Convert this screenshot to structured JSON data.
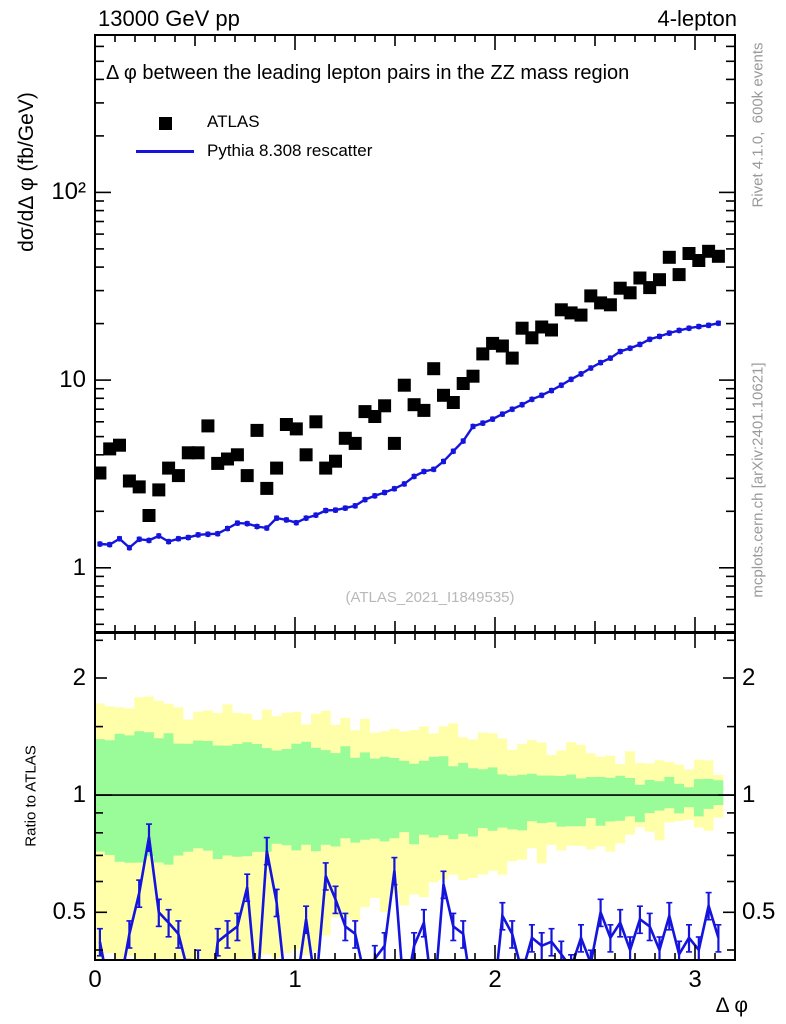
{
  "header": {
    "left": "13000 GeV pp",
    "right": "4-lepton"
  },
  "side_notes": {
    "top_rotated": "Rivet 4.1.0,  600k events",
    "bottom_rotated": "mcplots.cern.ch [arXiv:2401.10621]"
  },
  "watermark": "(ATLAS_2021_I1849535)",
  "legend": {
    "items": [
      {
        "label": "ATLAS",
        "marker": "black-filled-square"
      },
      {
        "label": "Pythia 8.308 rescatter",
        "marker": "blue-line"
      }
    ]
  },
  "colors": {
    "blue": "#1414dd",
    "black": "#000000",
    "band_yellow": "#FFFFAA",
    "band_green": "#99FC99",
    "gray_text": "#9a9a9a",
    "watermark_gray": "#b8b8b8"
  },
  "chart_data": {
    "type": "line",
    "title": "Δ φ between the leading lepton pairs in the ZZ mass region",
    "x": {
      "label": "Δ φ",
      "range": [
        0,
        3.2
      ],
      "tick_values": [
        0,
        1,
        2,
        3
      ],
      "tick_labels": [
        "0",
        "1",
        "2",
        "3"
      ]
    },
    "bins": {
      "n": 64,
      "start": 0,
      "end": 3.14159
    },
    "main_axis": {
      "label": "dσ/dΔ φ (fb/GeV)",
      "scale": "log",
      "range": [
        0.455,
        690
      ],
      "tick_values": [
        100,
        10,
        1
      ],
      "tick_labels": [
        "10²",
        "10",
        "1"
      ],
      "minor_ticks": [
        0.5,
        0.6,
        0.7,
        0.8,
        0.9,
        2,
        3,
        4,
        5,
        6,
        7,
        8,
        9,
        20,
        30,
        40,
        50,
        60,
        70,
        80,
        90,
        200,
        300,
        400,
        500,
        600
      ]
    },
    "ratio_axis": {
      "label": "Ratio to ATLAS",
      "scale": "log",
      "range": [
        0.377,
        2.61
      ],
      "tick_values": [
        2,
        1,
        0.5
      ],
      "tick_labels": [
        "2",
        "1",
        "0.5"
      ],
      "minor_ticks": [
        0.4,
        0.6,
        0.7,
        0.8,
        0.9,
        1.5,
        2.5
      ]
    },
    "series": [
      {
        "name": "ATLAS",
        "type": "scatter",
        "marker": "filled-square",
        "color": "#000000",
        "values": [
          3.2,
          4.3,
          4.5,
          2.9,
          2.7,
          1.9,
          2.6,
          3.4,
          3.1,
          4.1,
          4.1,
          5.7,
          3.6,
          3.8,
          4.0,
          3.1,
          5.4,
          2.65,
          3.4,
          5.8,
          5.5,
          4.0,
          6.0,
          3.4,
          3.7,
          4.9,
          4.6,
          6.8,
          6.4,
          7.3,
          4.6,
          9.4,
          7.4,
          6.9,
          11.5,
          8.3,
          7.6,
          9.6,
          10.5,
          13.8,
          15.7,
          15.2,
          13.1,
          18.9,
          16.8,
          19.2,
          18.5,
          23.7,
          22.8,
          22.2,
          28.1,
          25.8,
          25.2,
          30.9,
          29.2,
          35.0,
          31.1,
          34.3,
          45.1,
          36.5,
          47.3,
          43.4,
          48.6,
          45.7
        ]
      },
      {
        "name": "Pythia 8.308 rescatter",
        "type": "line",
        "marker": "small-square",
        "color": "#1414dd",
        "err_rel": 0.035,
        "values": [
          1.34,
          1.33,
          1.43,
          1.28,
          1.42,
          1.4,
          1.48,
          1.38,
          1.43,
          1.45,
          1.5,
          1.51,
          1.52,
          1.62,
          1.73,
          1.72,
          1.66,
          1.63,
          1.84,
          1.8,
          1.74,
          1.84,
          1.91,
          2.02,
          2.03,
          2.08,
          2.14,
          2.31,
          2.42,
          2.52,
          2.64,
          2.8,
          3.07,
          3.26,
          3.35,
          3.69,
          4.18,
          4.74,
          5.67,
          5.9,
          6.2,
          6.59,
          7.0,
          7.4,
          7.9,
          8.3,
          8.8,
          9.4,
          10.1,
          10.8,
          11.6,
          12.4,
          13.1,
          14.2,
          14.8,
          15.5,
          16.5,
          17.1,
          17.8,
          18.4,
          18.9,
          19.3,
          19.6,
          20.1
        ]
      }
    ],
    "ratio": {
      "name": "Pythia 8.308 rescatter / ATLAS",
      "color": "#1414dd",
      "err_rel": 0.08,
      "values": [
        0.42,
        0.31,
        0.32,
        0.44,
        0.56,
        0.78,
        0.5,
        0.47,
        0.44,
        0.35,
        0.37,
        0.26,
        0.42,
        0.44,
        0.46,
        0.58,
        0.31,
        0.72,
        0.53,
        0.31,
        0.32,
        0.48,
        0.32,
        0.62,
        0.54,
        0.46,
        0.44,
        0.34,
        0.38,
        0.41,
        0.64,
        0.3,
        0.41,
        0.47,
        0.29,
        0.59,
        0.46,
        0.44,
        0.3,
        0.34,
        0.28,
        0.49,
        0.44,
        0.35,
        0.43,
        0.41,
        0.42,
        0.39,
        0.36,
        0.43,
        0.37,
        0.5,
        0.43,
        0.47,
        0.4,
        0.48,
        0.46,
        0.4,
        0.49,
        0.39,
        0.43,
        0.4,
        0.52,
        0.43
      ]
    },
    "uncertainty_bands": {
      "description": "ATLAS data uncertainty around ratio=1; yellow=total, green=statistical",
      "anchors_x": [
        0.1,
        0.3,
        0.5,
        0.7,
        0.9,
        1.1,
        1.3,
        1.5,
        1.7,
        1.9,
        2.1,
        2.3,
        2.5,
        2.7,
        2.9,
        3.1
      ],
      "yellow_top": [
        1.68,
        1.76,
        1.62,
        1.66,
        1.56,
        1.6,
        1.52,
        1.47,
        1.5,
        1.42,
        1.36,
        1.32,
        1.28,
        1.24,
        1.2,
        1.17
      ],
      "green_top": [
        1.4,
        1.44,
        1.36,
        1.38,
        1.34,
        1.35,
        1.28,
        1.22,
        1.24,
        1.18,
        1.15,
        1.13,
        1.11,
        1.09,
        1.08,
        1.07
      ],
      "green_bot": [
        0.7,
        0.67,
        0.72,
        0.7,
        0.73,
        0.72,
        0.76,
        0.78,
        0.77,
        0.8,
        0.83,
        0.84,
        0.86,
        0.88,
        0.9,
        0.92
      ],
      "yellow_bot": [
        0.4,
        0.3,
        0.36,
        0.32,
        0.38,
        0.42,
        0.5,
        0.55,
        0.58,
        0.62,
        0.68,
        0.7,
        0.74,
        0.78,
        0.81,
        0.84
      ],
      "unity_line": 1.0
    },
    "legend_position": "top-left-inside",
    "grid": false
  }
}
